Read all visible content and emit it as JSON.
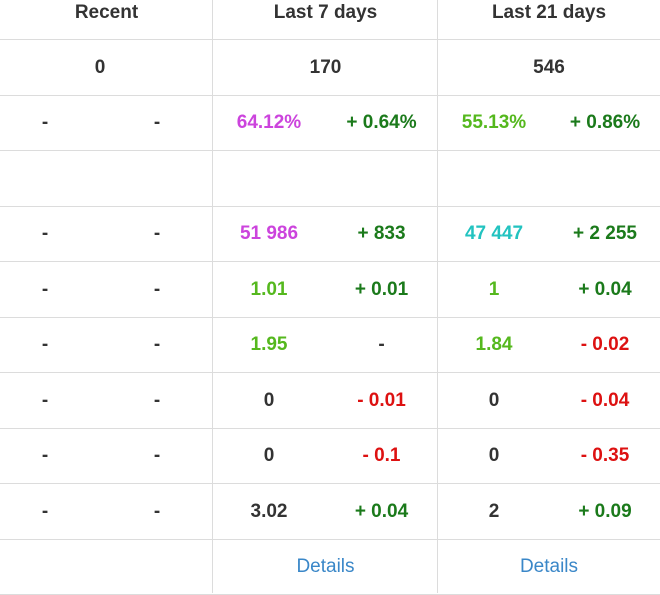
{
  "colors": {
    "purple": "#cc44dd",
    "lime": "#55b81e",
    "teal": "#22c3c0",
    "positive_delta": "#1b7a1b",
    "negative_delta": "#dd1111",
    "text": "#333333",
    "link": "#3a87c8",
    "grid_line": "#dcdcdc"
  },
  "headers": {
    "recent": "Recent",
    "last7": "Last 7 days",
    "last21": "Last 21 days"
  },
  "counts": {
    "recent": "0",
    "last7": "170",
    "last21": "546"
  },
  "rows": [
    {
      "r1": "-",
      "r2": "-",
      "v7": "64.12%",
      "d7": "+ 0.64%",
      "v21": "55.13%",
      "d21": "+ 0.86%"
    },
    {
      "r1": "-",
      "r2": "-",
      "v7": "51 986",
      "d7": "+ 833",
      "v21": "47 447",
      "d21": "+ 2 255"
    },
    {
      "r1": "-",
      "r2": "-",
      "v7": "1.01",
      "d7": "+ 0.01",
      "v21": "1",
      "d21": "+ 0.04"
    },
    {
      "r1": "-",
      "r2": "-",
      "v7": "1.95",
      "d7": "-",
      "v21": "1.84",
      "d21": "- 0.02"
    },
    {
      "r1": "-",
      "r2": "-",
      "v7": "0",
      "d7": "- 0.01",
      "v21": "0",
      "d21": "- 0.04"
    },
    {
      "r1": "-",
      "r2": "-",
      "v7": "0",
      "d7": "- 0.1",
      "v21": "0",
      "d21": "- 0.35"
    },
    {
      "r1": "-",
      "r2": "-",
      "v7": "3.02",
      "d7": "+ 0.04",
      "v21": "2",
      "d21": "+ 0.09"
    }
  ],
  "details": {
    "last7": "Details",
    "last21": "Details"
  }
}
